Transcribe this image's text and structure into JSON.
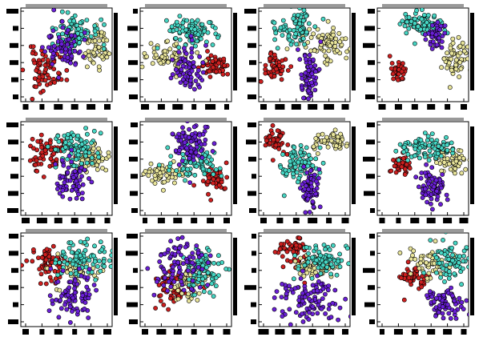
{
  "figure": {
    "rows": 3,
    "cols": 4,
    "axis_frame_color": "#000000",
    "background_color": "#ffffff",
    "tick_labels_visible": false
  },
  "cluster_palette": {
    "red": "#cc1f1f",
    "yellow": "#e8e49a",
    "cyan": "#46d6c4",
    "purple": "#6a1fd6"
  },
  "chart_data": [
    {
      "type": "scatter",
      "panel": 1,
      "xlim": [
        0,
        100
      ],
      "ylim": [
        0,
        100
      ],
      "grid": false,
      "series": [
        {
          "color": "red",
          "center": [
            28,
            34
          ],
          "spread": [
            11,
            11
          ],
          "count": 70,
          "seed": 11
        },
        {
          "color": "yellow",
          "center": [
            83,
            58
          ],
          "spread": [
            6,
            10
          ],
          "count": 55,
          "seed": 12
        },
        {
          "color": "cyan",
          "center": [
            55,
            74
          ],
          "spread": [
            14,
            10
          ],
          "count": 90,
          "seed": 13
        },
        {
          "color": "purple",
          "center": [
            48,
            58
          ],
          "spread": [
            10,
            12
          ],
          "count": 70,
          "seed": 14
        }
      ]
    },
    {
      "type": "scatter",
      "panel": 2,
      "xlim": [
        0,
        100
      ],
      "ylim": [
        0,
        100
      ],
      "grid": false,
      "series": [
        {
          "color": "red",
          "center": [
            82,
            38
          ],
          "spread": [
            8,
            6
          ],
          "count": 60,
          "seed": 21
        },
        {
          "color": "yellow",
          "center": [
            28,
            50
          ],
          "spread": [
            14,
            7
          ],
          "count": 65,
          "seed": 22
        },
        {
          "color": "cyan",
          "center": [
            55,
            75
          ],
          "spread": [
            14,
            8
          ],
          "count": 85,
          "seed": 23
        },
        {
          "color": "purple",
          "center": [
            52,
            32
          ],
          "spread": [
            9,
            12
          ],
          "count": 70,
          "seed": 24
        }
      ]
    },
    {
      "type": "scatter",
      "panel": 3,
      "xlim": [
        0,
        100
      ],
      "ylim": [
        0,
        100
      ],
      "grid": false,
      "series": [
        {
          "color": "red",
          "center": [
            18,
            38
          ],
          "spread": [
            6,
            7
          ],
          "count": 55,
          "seed": 31
        },
        {
          "color": "yellow",
          "center": [
            75,
            62
          ],
          "spread": [
            14,
            10
          ],
          "count": 75,
          "seed": 32
        },
        {
          "color": "cyan",
          "center": [
            40,
            78
          ],
          "spread": [
            11,
            9
          ],
          "count": 80,
          "seed": 33
        },
        {
          "color": "purple",
          "center": [
            55,
            28
          ],
          "spread": [
            5,
            15
          ],
          "count": 70,
          "seed": 34
        }
      ]
    },
    {
      "type": "scatter",
      "panel": 4,
      "xlim": [
        0,
        100
      ],
      "ylim": [
        0,
        100
      ],
      "grid": false,
      "series": [
        {
          "color": "red",
          "center": [
            24,
            32
          ],
          "spread": [
            4,
            6
          ],
          "count": 40,
          "seed": 41
        },
        {
          "color": "yellow",
          "center": [
            85,
            48
          ],
          "spread": [
            8,
            10
          ],
          "count": 60,
          "seed": 42
        },
        {
          "color": "cyan",
          "center": [
            50,
            82
          ],
          "spread": [
            12,
            7
          ],
          "count": 85,
          "seed": 43
        },
        {
          "color": "purple",
          "center": [
            64,
            70
          ],
          "spread": [
            6,
            8
          ],
          "count": 45,
          "seed": 44
        }
      ]
    },
    {
      "type": "scatter",
      "panel": 5,
      "xlim": [
        0,
        100
      ],
      "ylim": [
        0,
        100
      ],
      "grid": false,
      "series": [
        {
          "color": "red",
          "center": [
            28,
            65
          ],
          "spread": [
            11,
            10
          ],
          "count": 60,
          "seed": 51
        },
        {
          "color": "yellow",
          "center": [
            82,
            62
          ],
          "spread": [
            8,
            8
          ],
          "count": 60,
          "seed": 52
        },
        {
          "color": "cyan",
          "center": [
            58,
            70
          ],
          "spread": [
            13,
            10
          ],
          "count": 90,
          "seed": 53
        },
        {
          "color": "purple",
          "center": [
            55,
            38
          ],
          "spread": [
            11,
            12
          ],
          "count": 70,
          "seed": 54
        }
      ]
    },
    {
      "type": "scatter",
      "panel": 6,
      "xlim": [
        0,
        100
      ],
      "ylim": [
        0,
        100
      ],
      "grid": false,
      "series": [
        {
          "color": "red",
          "center": [
            80,
            40
          ],
          "spread": [
            8,
            7
          ],
          "count": 50,
          "seed": 61
        },
        {
          "color": "yellow",
          "center": [
            22,
            45
          ],
          "spread": [
            12,
            6
          ],
          "count": 55,
          "seed": 62
        },
        {
          "color": "cyan",
          "center": [
            62,
            55
          ],
          "spread": [
            13,
            8
          ],
          "count": 70,
          "seed": 63
        },
        {
          "color": "purple",
          "center": [
            55,
            75
          ],
          "spread": [
            10,
            11
          ],
          "count": 90,
          "seed": 64
        }
      ]
    },
    {
      "type": "scatter",
      "panel": 7,
      "xlim": [
        0,
        100
      ],
      "ylim": [
        0,
        100
      ],
      "grid": false,
      "series": [
        {
          "color": "red",
          "center": [
            18,
            80
          ],
          "spread": [
            6,
            7
          ],
          "count": 45,
          "seed": 71
        },
        {
          "color": "yellow",
          "center": [
            78,
            78
          ],
          "spread": [
            12,
            6
          ],
          "count": 55,
          "seed": 72
        },
        {
          "color": "cyan",
          "center": [
            45,
            55
          ],
          "spread": [
            11,
            9
          ],
          "count": 80,
          "seed": 73
        },
        {
          "color": "purple",
          "center": [
            55,
            28
          ],
          "spread": [
            6,
            11
          ],
          "count": 65,
          "seed": 74
        }
      ]
    },
    {
      "type": "scatter",
      "panel": 8,
      "xlim": [
        0,
        100
      ],
      "ylim": [
        0,
        100
      ],
      "grid": false,
      "series": [
        {
          "color": "red",
          "center": [
            25,
            55
          ],
          "spread": [
            5,
            5
          ],
          "count": 35,
          "seed": 81
        },
        {
          "color": "yellow",
          "center": [
            80,
            60
          ],
          "spread": [
            12,
            8
          ],
          "count": 60,
          "seed": 82
        },
        {
          "color": "cyan",
          "center": [
            52,
            72
          ],
          "spread": [
            15,
            7
          ],
          "count": 90,
          "seed": 83
        },
        {
          "color": "purple",
          "center": [
            60,
            32
          ],
          "spread": [
            7,
            12
          ],
          "count": 75,
          "seed": 84
        }
      ]
    },
    {
      "type": "scatter",
      "panel": 9,
      "xlim": [
        0,
        100
      ],
      "ylim": [
        0,
        100
      ],
      "grid": false,
      "series": [
        {
          "color": "red",
          "center": [
            30,
            68
          ],
          "spread": [
            11,
            9
          ],
          "count": 70,
          "seed": 91
        },
        {
          "color": "yellow",
          "center": [
            62,
            62
          ],
          "spread": [
            12,
            10
          ],
          "count": 50,
          "seed": 92
        },
        {
          "color": "cyan",
          "center": [
            68,
            72
          ],
          "spread": [
            14,
            10
          ],
          "count": 85,
          "seed": 93
        },
        {
          "color": "purple",
          "center": [
            55,
            35
          ],
          "spread": [
            12,
            12
          ],
          "count": 80,
          "seed": 94
        }
      ]
    },
    {
      "type": "scatter",
      "panel": 10,
      "xlim": [
        0,
        100
      ],
      "ylim": [
        0,
        100
      ],
      "grid": false,
      "series": [
        {
          "color": "red",
          "center": [
            38,
            42
          ],
          "spread": [
            10,
            10
          ],
          "count": 65,
          "seed": 101
        },
        {
          "color": "yellow",
          "center": [
            52,
            45
          ],
          "spread": [
            10,
            8
          ],
          "count": 55,
          "seed": 102
        },
        {
          "color": "cyan",
          "center": [
            68,
            58
          ],
          "spread": [
            12,
            12
          ],
          "count": 80,
          "seed": 103
        },
        {
          "color": "purple",
          "center": [
            40,
            66
          ],
          "spread": [
            14,
            14
          ],
          "count": 90,
          "seed": 104
        }
      ]
    },
    {
      "type": "scatter",
      "panel": 11,
      "xlim": [
        0,
        100
      ],
      "ylim": [
        0,
        100
      ],
      "grid": false,
      "series": [
        {
          "color": "red",
          "center": [
            40,
            80
          ],
          "spread": [
            10,
            8
          ],
          "count": 60,
          "seed": 111
        },
        {
          "color": "yellow",
          "center": [
            58,
            66
          ],
          "spread": [
            12,
            8
          ],
          "count": 55,
          "seed": 112
        },
        {
          "color": "cyan",
          "center": [
            70,
            72
          ],
          "spread": [
            14,
            8
          ],
          "count": 75,
          "seed": 113
        },
        {
          "color": "purple",
          "center": [
            52,
            30
          ],
          "spread": [
            17,
            12
          ],
          "count": 100,
          "seed": 114
        }
      ]
    },
    {
      "type": "scatter",
      "panel": 12,
      "xlim": [
        0,
        100
      ],
      "ylim": [
        0,
        100
      ],
      "grid": false,
      "series": [
        {
          "color": "red",
          "center": [
            40,
            55
          ],
          "spread": [
            7,
            7
          ],
          "count": 45,
          "seed": 121
        },
        {
          "color": "yellow",
          "center": [
            58,
            68
          ],
          "spread": [
            13,
            8
          ],
          "count": 55,
          "seed": 122
        },
        {
          "color": "cyan",
          "center": [
            80,
            70
          ],
          "spread": [
            11,
            10
          ],
          "count": 70,
          "seed": 123
        },
        {
          "color": "purple",
          "center": [
            75,
            25
          ],
          "spread": [
            11,
            8
          ],
          "count": 70,
          "seed": 124
        }
      ]
    }
  ]
}
